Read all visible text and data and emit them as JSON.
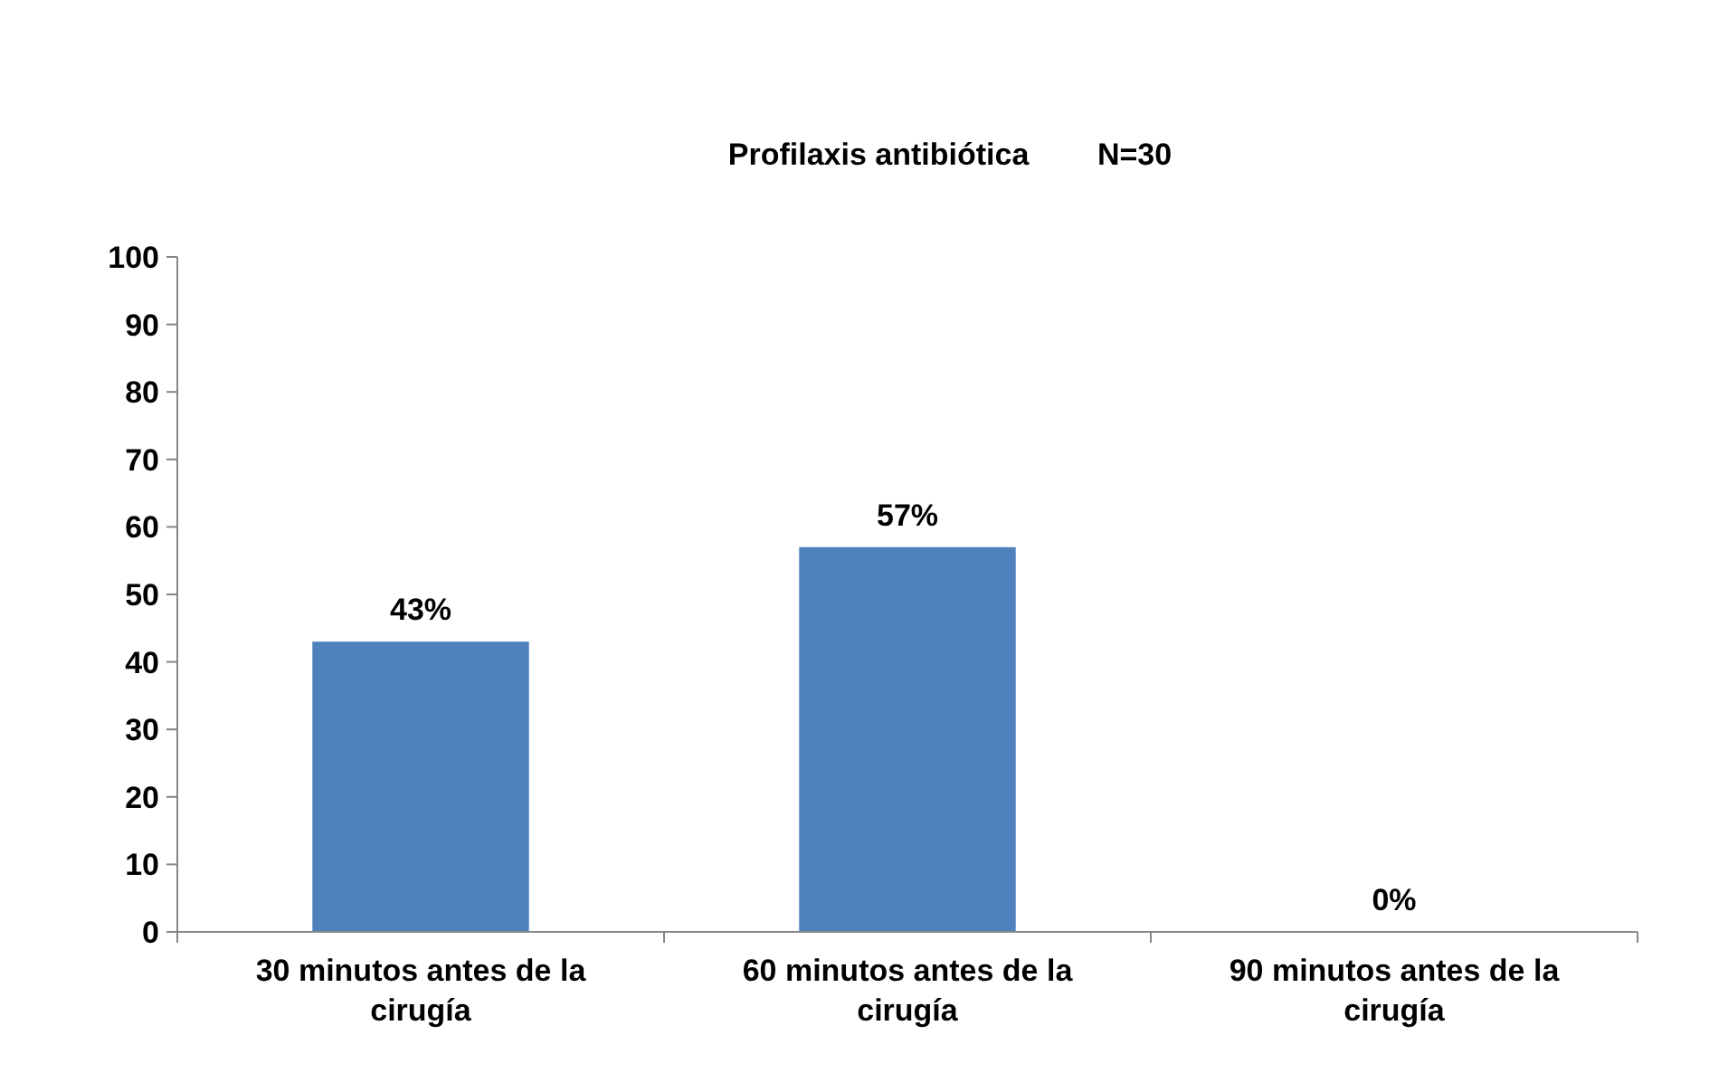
{
  "chart_data": {
    "type": "bar",
    "title": "Profilaxis antibiótica        N=30",
    "categories": [
      "30 minutos antes de la cirugía",
      "60 minutos antes de la cirugía",
      "90 minutos antes de la cirugía"
    ],
    "values": [
      43,
      57,
      0
    ],
    "value_labels": [
      "43%",
      "57%",
      "0%"
    ],
    "color": "#4f81bd",
    "ylim": [
      0,
      100
    ],
    "yticks": [
      0,
      10,
      20,
      30,
      40,
      50,
      60,
      70,
      80,
      90,
      100
    ],
    "grid": false
  }
}
